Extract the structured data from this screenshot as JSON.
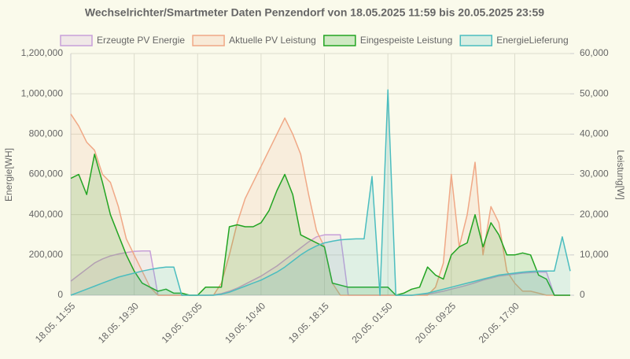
{
  "chart_data": {
    "type": "line",
    "title": "Wechselrichter/Smartmeter Daten Penzendorf von 18.05.2025 11:59 bis 20.05.2025 23:59",
    "y_label": "Energie[WH]",
    "y2_label": "Leistung[W]",
    "grid": true,
    "legend": "top",
    "categories": [
      "18.05. 11:55",
      null,
      null,
      null,
      null,
      null,
      null,
      null,
      "18.05. 19:30",
      null,
      null,
      null,
      null,
      null,
      null,
      null,
      "19.05. 03:05",
      null,
      null,
      null,
      null,
      null,
      null,
      null,
      "19.05. 10:40",
      null,
      null,
      null,
      null,
      null,
      null,
      null,
      "19.05. 18:15",
      null,
      null,
      null,
      null,
      null,
      null,
      null,
      "20.05. 01:50",
      null,
      null,
      null,
      null,
      null,
      null,
      null,
      "20.05. 09:25",
      null,
      null,
      null,
      null,
      null,
      null,
      null,
      "20.05. 17:00",
      null,
      null,
      null,
      null,
      null,
      null,
      null
    ],
    "ylim": [
      0,
      1200000
    ],
    "yticks": [
      0,
      {
        "value": 200000,
        "label": "200,000"
      },
      {
        "value": 400000,
        "label": "400,000"
      },
      {
        "value": 600000,
        "label": "600,000"
      },
      {
        "value": 800000,
        "label": "800,000"
      },
      {
        "value": 1000000,
        "label": "1,000,000"
      },
      {
        "value": 1200000,
        "label": "1,200,000"
      }
    ],
    "y2lim": [
      0,
      60000
    ],
    "y2ticks": [
      0,
      {
        "value": 10000,
        "label": "10,000"
      },
      {
        "value": 20000,
        "label": "20,000"
      },
      {
        "value": 30000,
        "label": "30,000"
      },
      {
        "value": 40000,
        "label": "40,000"
      },
      {
        "value": 50000,
        "label": "50,000"
      },
      {
        "value": 60000,
        "label": "60,000"
      }
    ],
    "series": [
      {
        "name": "Erzeugte PV Energie",
        "color": "#c79fd9",
        "axis": "y",
        "values": [
          70000,
          100000,
          130000,
          160000,
          180000,
          195000,
          205000,
          212000,
          218000,
          220000,
          220000,
          0,
          0,
          0,
          0,
          0,
          0,
          0,
          2000,
          8000,
          20000,
          35000,
          55000,
          75000,
          95000,
          120000,
          145000,
          175000,
          205000,
          235000,
          265000,
          290000,
          300000,
          300000,
          300000,
          0,
          0,
          0,
          0,
          0,
          0,
          0,
          0,
          0,
          2000,
          5000,
          12000,
          20000,
          30000,
          40000,
          50000,
          62000,
          75000,
          85000,
          95000,
          100000,
          105000,
          110000,
          112000,
          115000,
          115000,
          0,
          0,
          0
        ]
      },
      {
        "name": "Aktuelle PV Leistung",
        "color": "#f0a886",
        "axis": "y2",
        "values": [
          45000,
          42000,
          38000,
          36000,
          30000,
          28000,
          22000,
          14000,
          10000,
          6000,
          2000,
          0,
          0,
          0,
          0,
          0,
          0,
          0,
          0,
          3000,
          10000,
          18000,
          24000,
          28000,
          32000,
          36000,
          40000,
          44000,
          40000,
          35000,
          25000,
          16000,
          12000,
          3000,
          0,
          0,
          0,
          0,
          0,
          0,
          0,
          0,
          0,
          0,
          0,
          0,
          2000,
          8000,
          30000,
          12000,
          20000,
          33000,
          10000,
          22000,
          18000,
          6000,
          3000,
          1000,
          1000,
          500,
          0,
          0,
          0,
          0
        ]
      },
      {
        "name": "Eingespeiste Leistung",
        "color": "#22a422",
        "axis": "y2",
        "values": [
          29000,
          30000,
          25000,
          35000,
          28000,
          20000,
          15000,
          10000,
          6000,
          3000,
          2000,
          1000,
          1500,
          500,
          500,
          0,
          0,
          2000,
          2000,
          2000,
          17000,
          17500,
          17000,
          17000,
          18000,
          21000,
          26000,
          30000,
          25000,
          15000,
          14000,
          13000,
          12000,
          3000,
          2500,
          2000,
          2000,
          2000,
          2000,
          2000,
          2000,
          0,
          500,
          1500,
          2000,
          7000,
          5000,
          4000,
          10000,
          12000,
          13000,
          20000,
          12000,
          18000,
          15000,
          10000,
          10000,
          10500,
          10000,
          5000,
          4000,
          0,
          0,
          0
        ]
      },
      {
        "name": "EnergieLieferung",
        "color": "#4bbdbf",
        "axis": "y",
        "values": [
          0,
          15000,
          30000,
          45000,
          60000,
          75000,
          90000,
          100000,
          110000,
          120000,
          128000,
          135000,
          140000,
          140000,
          0,
          0,
          0,
          0,
          0,
          5000,
          15000,
          30000,
          45000,
          60000,
          75000,
          95000,
          115000,
          140000,
          170000,
          200000,
          225000,
          245000,
          260000,
          268000,
          275000,
          278000,
          280000,
          280000,
          590000,
          0,
          1020000,
          0,
          0,
          0,
          5000,
          10000,
          20000,
          30000,
          40000,
          50000,
          60000,
          70000,
          80000,
          90000,
          100000,
          105000,
          110000,
          115000,
          118000,
          120000,
          120000,
          120000,
          290000,
          120000
        ]
      }
    ]
  }
}
